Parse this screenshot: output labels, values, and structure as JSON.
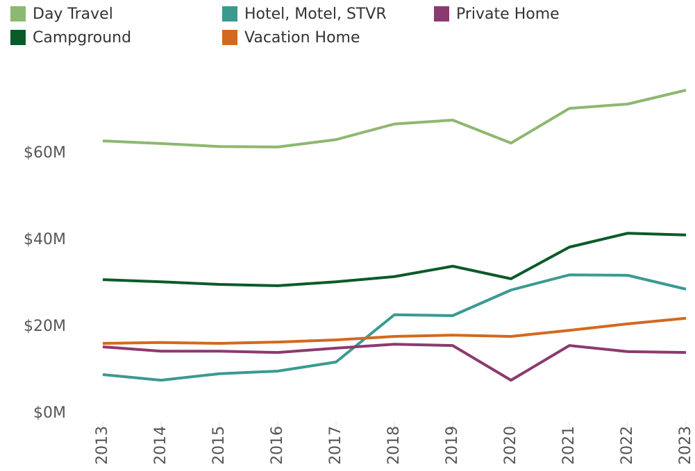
{
  "chart_data": {
    "type": "line",
    "categories": [
      "2013",
      "2014",
      "2015",
      "2016",
      "2017",
      "2018",
      "2019",
      "2020",
      "2021",
      "2022",
      "2023"
    ],
    "series": [
      {
        "name": "Day Travel",
        "color": "#8db870",
        "values": [
          63.5,
          62.9,
          62.2,
          62.1,
          63.8,
          67.4,
          68.3,
          63.0,
          71.0,
          72.0,
          75.2
        ]
      },
      {
        "name": "Hotel, Motel, STVR",
        "color": "#3a9a90",
        "values": [
          9.6,
          8.3,
          9.8,
          10.4,
          12.5,
          23.4,
          23.2,
          29.1,
          32.6,
          32.5,
          29.3
        ]
      },
      {
        "name": "Private Home",
        "color": "#8b3a6f",
        "values": [
          16.0,
          15.0,
          15.0,
          14.7,
          15.7,
          16.6,
          16.3,
          8.3,
          16.3,
          14.9,
          14.7
        ]
      },
      {
        "name": "Campground",
        "color": "#0b5a2a",
        "values": [
          31.5,
          31.0,
          30.4,
          30.1,
          31.0,
          32.2,
          34.6,
          31.7,
          39.0,
          42.2,
          41.8
        ]
      },
      {
        "name": "Vacation Home",
        "color": "#d2691e",
        "values": [
          16.8,
          17.0,
          16.8,
          17.1,
          17.6,
          18.4,
          18.7,
          18.4,
          19.8,
          21.3,
          22.6
        ]
      }
    ],
    "ylim": [
      0,
      80
    ],
    "yticks": [
      {
        "value": 0,
        "label": "$0M"
      },
      {
        "value": 20,
        "label": "$20M"
      },
      {
        "value": 40,
        "label": "$40M"
      },
      {
        "value": 60,
        "label": "$60M"
      }
    ],
    "grid": false
  }
}
